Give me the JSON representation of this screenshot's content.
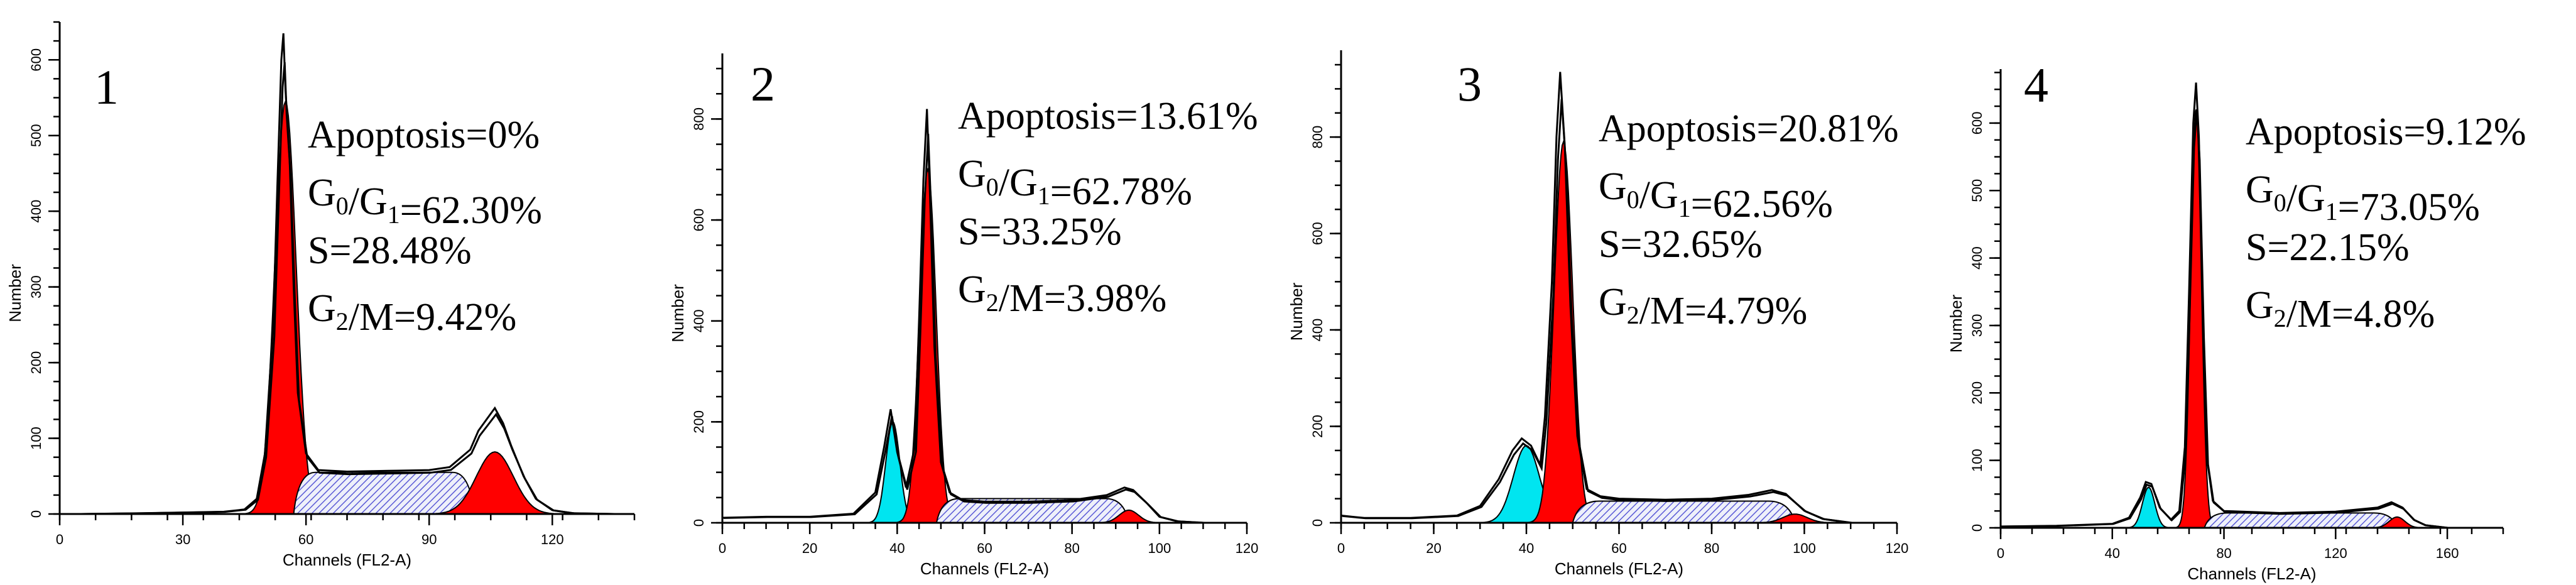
{
  "chart_data": [
    {
      "type": "histogram",
      "panel": "1",
      "xlabel": "Channels (FL2-A)",
      "ylabel": "Number",
      "xlim": [
        0,
        140
      ],
      "ylim": [
        0,
        650
      ],
      "xticks": [
        "0",
        "30",
        "60",
        "90",
        "120"
      ],
      "yticks": [
        "0",
        "100",
        "200",
        "300",
        "400",
        "500",
        "600"
      ],
      "stats": {
        "apoptosis": "Apoptosis=0%",
        "g1_main": "G",
        "g1_sub": "0",
        "g1_mid": "/G",
        "g1_sub2": "1",
        "g1_val": "=62.30%",
        "s": "S=28.48%",
        "g2_main": "G",
        "g2_sub": "2",
        "g2_val": "/M=9.42%"
      },
      "components": [
        {
          "name": "G0/G1",
          "kind": "gauss",
          "mu": 55,
          "sigma": 2.6,
          "amp": 545,
          "color": "red"
        },
        {
          "name": "S",
          "kind": "band",
          "x0": 57,
          "x1": 101,
          "level": 55
        },
        {
          "name": "G2/M",
          "kind": "gauss",
          "mu": 106,
          "sigma": 4.5,
          "amp": 82,
          "color": "red"
        }
      ],
      "overlay": [
        [
          5,
          0
        ],
        [
          20,
          1
        ],
        [
          30,
          2
        ],
        [
          40,
          3
        ],
        [
          45,
          6
        ],
        [
          48,
          20
        ],
        [
          50,
          80
        ],
        [
          52,
          250
        ],
        [
          53,
          430
        ],
        [
          54,
          600
        ],
        [
          54.5,
          635
        ],
        [
          55,
          560
        ],
        [
          56,
          470
        ],
        [
          57,
          300
        ],
        [
          58,
          160
        ],
        [
          60,
          80
        ],
        [
          63,
          58
        ],
        [
          70,
          56
        ],
        [
          80,
          57
        ],
        [
          90,
          58
        ],
        [
          95,
          62
        ],
        [
          100,
          85
        ],
        [
          102,
          110
        ],
        [
          104,
          125
        ],
        [
          106,
          140
        ],
        [
          108,
          120
        ],
        [
          110,
          90
        ],
        [
          113,
          50
        ],
        [
          116,
          20
        ],
        [
          120,
          5
        ],
        [
          125,
          1
        ],
        [
          135,
          0
        ]
      ]
    },
    {
      "type": "histogram",
      "panel": "2",
      "xlabel": "Channels (FL2-A)",
      "ylabel": "Number",
      "xlim": [
        0,
        120
      ],
      "ylim": [
        0,
        930
      ],
      "xticks": [
        "0",
        "20",
        "40",
        "60",
        "80",
        "100",
        "120"
      ],
      "yticks": [
        "0",
        "200",
        "400",
        "600",
        "800"
      ],
      "stats": {
        "apoptosis": "Apoptosis=13.61%",
        "g1_main": "G",
        "g1_sub": "0",
        "g1_mid": "/G",
        "g1_sub2": "1",
        "g1_val": "=62.78%",
        "s": "S=33.25%",
        "g2_main": "G",
        "g2_sub": "2",
        "g2_val": "/M=3.98%"
      },
      "components": [
        {
          "name": "Apoptosis",
          "kind": "gauss",
          "mu": 39,
          "sigma": 1.6,
          "amp": 200,
          "color": "cyan"
        },
        {
          "name": "G0/G1",
          "kind": "gauss",
          "mu": 47,
          "sigma": 1.9,
          "amp": 700,
          "color": "red"
        },
        {
          "name": "S",
          "kind": "band",
          "x0": 49,
          "x1": 93,
          "level": 48
        },
        {
          "name": "G2/M",
          "kind": "gauss",
          "mu": 93,
          "sigma": 2.2,
          "amp": 25,
          "color": "red"
        }
      ],
      "overlay": [
        [
          0,
          10
        ],
        [
          10,
          12
        ],
        [
          20,
          12
        ],
        [
          30,
          18
        ],
        [
          35,
          60
        ],
        [
          37,
          150
        ],
        [
          38.5,
          225
        ],
        [
          40,
          140
        ],
        [
          42,
          70
        ],
        [
          44,
          150
        ],
        [
          45,
          400
        ],
        [
          46,
          680
        ],
        [
          46.8,
          820
        ],
        [
          47.5,
          650
        ],
        [
          48.5,
          350
        ],
        [
          50,
          120
        ],
        [
          52,
          60
        ],
        [
          55,
          45
        ],
        [
          60,
          42
        ],
        [
          70,
          42
        ],
        [
          80,
          45
        ],
        [
          88,
          55
        ],
        [
          92,
          70
        ],
        [
          94,
          65
        ],
        [
          97,
          40
        ],
        [
          100,
          12
        ],
        [
          104,
          3
        ],
        [
          110,
          0
        ]
      ]
    },
    {
      "type": "histogram",
      "panel": "3",
      "xlabel": "Channels (FL2-A)",
      "ylabel": "Number",
      "xlim": [
        0,
        120
      ],
      "ylim": [
        0,
        980
      ],
      "xticks": [
        "0",
        "20",
        "40",
        "60",
        "80",
        "100",
        "120"
      ],
      "yticks": [
        "0",
        "200",
        "400",
        "600",
        "800"
      ],
      "stats": {
        "apoptosis": "Apoptosis=20.81%",
        "g1_main": "G",
        "g1_sub": "0",
        "g1_mid": "/G",
        "g1_sub2": "1",
        "g1_val": "=62.56%",
        "s": "S=32.65%",
        "g2_main": "G",
        "g2_sub": "2",
        "g2_val": "/M=4.79%"
      },
      "components": [
        {
          "name": "Apoptosis",
          "kind": "gauss",
          "mu": 40,
          "sigma": 2.8,
          "amp": 160,
          "color": "cyan"
        },
        {
          "name": "G0/G1",
          "kind": "gauss",
          "mu": 48,
          "sigma": 2.0,
          "amp": 790,
          "color": "red"
        },
        {
          "name": "S",
          "kind": "band",
          "x0": 50,
          "x1": 98,
          "level": 45
        },
        {
          "name": "G2/M",
          "kind": "gauss",
          "mu": 98,
          "sigma": 2.6,
          "amp": 18,
          "color": "red"
        }
      ],
      "overlay": [
        [
          0,
          15
        ],
        [
          5,
          10
        ],
        [
          15,
          10
        ],
        [
          25,
          15
        ],
        [
          30,
          35
        ],
        [
          34,
          90
        ],
        [
          37,
          150
        ],
        [
          39,
          175
        ],
        [
          41,
          160
        ],
        [
          43,
          120
        ],
        [
          44,
          220
        ],
        [
          45.5,
          500
        ],
        [
          46.5,
          800
        ],
        [
          47.3,
          935
        ],
        [
          48.3,
          780
        ],
        [
          49.5,
          450
        ],
        [
          51,
          180
        ],
        [
          53,
          70
        ],
        [
          56,
          55
        ],
        [
          60,
          50
        ],
        [
          70,
          48
        ],
        [
          80,
          50
        ],
        [
          88,
          58
        ],
        [
          93,
          68
        ],
        [
          96,
          60
        ],
        [
          100,
          25
        ],
        [
          104,
          8
        ],
        [
          110,
          0
        ]
      ]
    },
    {
      "type": "histogram",
      "panel": "4",
      "xlabel": "Channels (FL2-A)",
      "ylabel": "Number",
      "xlim": [
        0,
        180
      ],
      "ylim": [
        0,
        680
      ],
      "xticks": [
        "0",
        "40",
        "80",
        "120",
        "160"
      ],
      "yticks": [
        "0",
        "100",
        "200",
        "300",
        "400",
        "500",
        "600"
      ],
      "stats": {
        "apoptosis": "Apoptosis=9.12%",
        "g1_main": "G",
        "g1_sub": "0",
        "g1_mid": "/G",
        "g1_sub2": "1",
        "g1_val": "=73.05%",
        "s": "S=22.15%",
        "g2_main": "G",
        "g2_sub": "2",
        "g2_val": "/M=4.8%"
      },
      "components": [
        {
          "name": "Apoptosis",
          "kind": "gauss",
          "mu": 53,
          "sigma": 2.2,
          "amp": 60,
          "color": "cyan"
        },
        {
          "name": "G0/G1",
          "kind": "gauss",
          "mu": 70,
          "sigma": 1.9,
          "amp": 620,
          "color": "red"
        },
        {
          "name": "S",
          "kind": "band",
          "x0": 73,
          "x1": 142,
          "level": 22
        },
        {
          "name": "G2/M",
          "kind": "gauss",
          "mu": 142,
          "sigma": 2.8,
          "amp": 16,
          "color": "red"
        }
      ],
      "overlay": [
        [
          0,
          2
        ],
        [
          20,
          3
        ],
        [
          40,
          6
        ],
        [
          46,
          15
        ],
        [
          50,
          45
        ],
        [
          52,
          68
        ],
        [
          54,
          65
        ],
        [
          57,
          30
        ],
        [
          61,
          12
        ],
        [
          64,
          25
        ],
        [
          66,
          120
        ],
        [
          67.5,
          350
        ],
        [
          69,
          600
        ],
        [
          70,
          660
        ],
        [
          71,
          580
        ],
        [
          72.5,
          300
        ],
        [
          74,
          100
        ],
        [
          76,
          40
        ],
        [
          80,
          25
        ],
        [
          100,
          22
        ],
        [
          120,
          24
        ],
        [
          135,
          30
        ],
        [
          140,
          38
        ],
        [
          144,
          30
        ],
        [
          148,
          12
        ],
        [
          152,
          4
        ],
        [
          160,
          0
        ]
      ]
    }
  ]
}
